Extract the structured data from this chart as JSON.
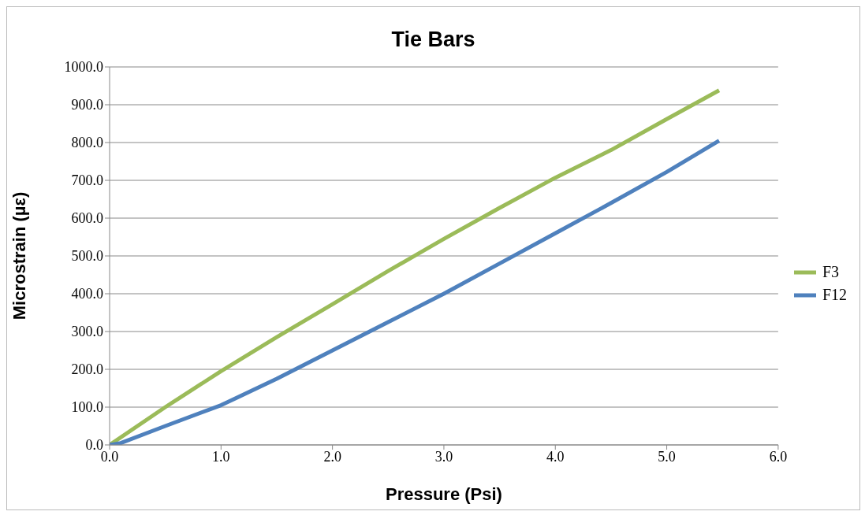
{
  "chart_data": {
    "type": "line",
    "title": "Tie Bars",
    "xlabel": "Pressure (Psi)",
    "ylabel": "Microstrain (µε)",
    "xlim": [
      0,
      6
    ],
    "xticks": [
      {
        "value": 0,
        "label": "0.0"
      },
      {
        "value": 1,
        "label": "1.0"
      },
      {
        "value": 2,
        "label": "2.0"
      },
      {
        "value": 3,
        "label": "3.0"
      },
      {
        "value": 4,
        "label": "4.0"
      },
      {
        "value": 5,
        "label": "5.0"
      },
      {
        "value": 6,
        "label": "6.0"
      }
    ],
    "ylim": [
      0,
      1000
    ],
    "yticks": [
      {
        "value": 0,
        "label": "0.0"
      },
      {
        "value": 100,
        "label": "100.0"
      },
      {
        "value": 200,
        "label": "200.0"
      },
      {
        "value": 300,
        "label": "300.0"
      },
      {
        "value": 400,
        "label": "400.0"
      },
      {
        "value": 500,
        "label": "500.0"
      },
      {
        "value": 600,
        "label": "600.0"
      },
      {
        "value": 700,
        "label": "700.0"
      },
      {
        "value": 800,
        "label": "800.0"
      },
      {
        "value": 900,
        "label": "900.0"
      },
      {
        "value": 1000,
        "label": "1000.0"
      }
    ],
    "grid": "y",
    "legend": "right",
    "marker": "none",
    "line_style": "solid",
    "series": [
      {
        "name": "F3",
        "color": "#9bbb59",
        "x": [
          0,
          0.5,
          1.0,
          1.5,
          2.0,
          2.5,
          3.0,
          3.5,
          4.0,
          4.5,
          5.0,
          5.47
        ],
        "values": [
          0,
          100,
          195,
          285,
          372,
          460,
          545,
          627,
          707,
          780,
          862,
          938
        ]
      },
      {
        "name": "F12",
        "color": "#4f81bd",
        "x": [
          0,
          0.1,
          0.5,
          1.0,
          1.5,
          2.0,
          2.5,
          3.0,
          3.5,
          4.0,
          4.5,
          5.0,
          5.47
        ],
        "values": [
          0,
          5,
          50,
          105,
          175,
          250,
          325,
          400,
          480,
          560,
          640,
          722,
          805
        ]
      }
    ]
  }
}
